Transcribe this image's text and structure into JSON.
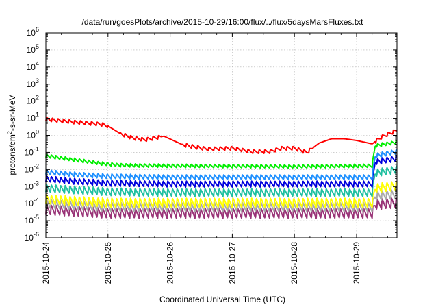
{
  "chart_data": {
    "type": "line",
    "title": "/data/run/goesPlots/archive/2015-10-29/16:00/flux/../flux/5daysMarsFluxes.txt",
    "xlabel": "Coordinated Universal Time (UTC)",
    "ylabel": {
      "prefix": "protons/cm",
      "sup": "2",
      "suffix": "-s-sr-MeV"
    },
    "yscale": "log",
    "ylim_exp": [
      -6,
      6
    ],
    "yticks": [
      {
        "base": "10",
        "exp": "-6"
      },
      {
        "base": "10",
        "exp": "-5"
      },
      {
        "base": "10",
        "exp": "-4"
      },
      {
        "base": "10",
        "exp": "-3"
      },
      {
        "base": "10",
        "exp": "-2"
      },
      {
        "base": "10",
        "exp": "-1"
      },
      {
        "base": "10",
        "exp": "0"
      },
      {
        "base": "10",
        "exp": "1"
      },
      {
        "base": "10",
        "exp": "2"
      },
      {
        "base": "10",
        "exp": "3"
      },
      {
        "base": "10",
        "exp": "4"
      },
      {
        "base": "10",
        "exp": "5"
      },
      {
        "base": "10",
        "exp": "6"
      }
    ],
    "xticks": [
      "2015-10-24",
      "2015-10-25",
      "2015-10-26",
      "2015-10-27",
      "2015-10-28",
      "2015-10-29"
    ],
    "xlim_days": [
      0,
      5.65
    ],
    "grid": true,
    "series": [
      {
        "color": "#ff0000",
        "teeth_amp": 0.22,
        "teeth_period": 0.09,
        "teeth_start": 0.0,
        "teeth_end": 1.0,
        "teeth2_start": 1.2,
        "teeth2_end": 1.85,
        "teeth3_start": 2.2,
        "teeth3_end": 4.3,
        "teeth4_start": 5.3,
        "teeth4_end": 5.65,
        "base_points": [
          [
            0,
            0.95
          ],
          [
            0.4,
            0.8
          ],
          [
            0.9,
            0.65
          ],
          [
            1.0,
            0.55
          ],
          [
            1.2,
            0.1
          ],
          [
            1.4,
            -0.15
          ],
          [
            1.6,
            -0.25
          ],
          [
            1.9,
            -0.05
          ],
          [
            2.2,
            -0.55
          ],
          [
            2.6,
            -0.8
          ],
          [
            3.0,
            -0.75
          ],
          [
            3.3,
            -0.95
          ],
          [
            3.6,
            -0.95
          ],
          [
            3.8,
            -0.75
          ],
          [
            4.0,
            -0.75
          ],
          [
            4.2,
            -1.0
          ],
          [
            4.4,
            -0.45
          ],
          [
            4.6,
            -0.2
          ],
          [
            4.8,
            -0.2
          ],
          [
            5.0,
            -0.3
          ],
          [
            5.25,
            -0.5
          ],
          [
            5.4,
            -0.1
          ],
          [
            5.65,
            0.3
          ]
        ]
      },
      {
        "color": "#00ee00",
        "teeth_amp": 0.2,
        "teeth_period": 0.075,
        "teeth_start": 0.0,
        "teeth_end": 5.65,
        "base_points": [
          [
            0,
            -1.2
          ],
          [
            0.3,
            -1.35
          ],
          [
            0.6,
            -1.5
          ],
          [
            0.9,
            -1.65
          ],
          [
            1.2,
            -1.75
          ],
          [
            2.0,
            -1.78
          ],
          [
            3.0,
            -1.8
          ],
          [
            4.0,
            -1.82
          ],
          [
            5.25,
            -1.78
          ],
          [
            5.3,
            -0.6
          ],
          [
            5.65,
            -0.4
          ]
        ]
      },
      {
        "color": "#1e90ff",
        "teeth_amp": 0.28,
        "teeth_period": 0.075,
        "teeth_start": 0.0,
        "teeth_end": 5.65,
        "base_points": [
          [
            0,
            -2.15
          ],
          [
            0.5,
            -2.3
          ],
          [
            1.0,
            -2.4
          ],
          [
            2.0,
            -2.45
          ],
          [
            3.0,
            -2.45
          ],
          [
            4.0,
            -2.45
          ],
          [
            5.25,
            -2.45
          ],
          [
            5.3,
            -1.2
          ],
          [
            5.65,
            -0.95
          ]
        ]
      },
      {
        "color": "#0000dd",
        "teeth_amp": 0.35,
        "teeth_period": 0.075,
        "teeth_start": 0.0,
        "teeth_end": 5.65,
        "base_points": [
          [
            0,
            -2.55
          ],
          [
            0.5,
            -2.7
          ],
          [
            1.0,
            -2.8
          ],
          [
            2.0,
            -2.85
          ],
          [
            3.0,
            -2.85
          ],
          [
            4.0,
            -2.85
          ],
          [
            5.25,
            -2.85
          ],
          [
            5.3,
            -1.55
          ],
          [
            5.65,
            -1.35
          ]
        ]
      },
      {
        "color": "#20c0a0",
        "teeth_amp": 0.45,
        "teeth_period": 0.075,
        "teeth_start": 0.0,
        "teeth_end": 5.65,
        "base_points": [
          [
            0,
            -3.1
          ],
          [
            0.5,
            -3.2
          ],
          [
            1.0,
            -3.3
          ],
          [
            2.0,
            -3.35
          ],
          [
            3.0,
            -3.35
          ],
          [
            4.0,
            -3.35
          ],
          [
            5.25,
            -3.35
          ],
          [
            5.3,
            -2.2
          ],
          [
            5.65,
            -2.0
          ]
        ]
      },
      {
        "color": "#ffff00",
        "teeth_amp": 0.55,
        "teeth_period": 0.075,
        "teeth_start": 0.0,
        "teeth_end": 5.65,
        "base_points": [
          [
            0,
            -3.75
          ],
          [
            0.5,
            -3.85
          ],
          [
            1.0,
            -3.95
          ],
          [
            2.0,
            -3.95
          ],
          [
            3.0,
            -3.95
          ],
          [
            4.0,
            -3.95
          ],
          [
            5.25,
            -3.95
          ],
          [
            5.3,
            -3.1
          ],
          [
            5.65,
            -2.95
          ]
        ]
      },
      {
        "color": "#aaaaaa",
        "teeth_amp": 0.55,
        "teeth_period": 0.075,
        "teeth_start": 0.0,
        "teeth_end": 5.65,
        "base_points": [
          [
            0,
            -4.0
          ],
          [
            0.5,
            -4.1
          ],
          [
            1.0,
            -4.2
          ],
          [
            2.0,
            -4.2
          ],
          [
            3.0,
            -4.2
          ],
          [
            4.0,
            -4.2
          ],
          [
            5.25,
            -4.2
          ],
          [
            5.3,
            -3.55
          ],
          [
            5.65,
            -3.45
          ]
        ]
      },
      {
        "color": "#993377",
        "teeth_amp": 0.6,
        "teeth_period": 0.075,
        "teeth_start": 0.0,
        "teeth_end": 5.65,
        "base_points": [
          [
            0,
            -4.35
          ],
          [
            0.5,
            -4.45
          ],
          [
            1.0,
            -4.55
          ],
          [
            2.0,
            -4.55
          ],
          [
            3.0,
            -4.55
          ],
          [
            4.0,
            -4.55
          ],
          [
            5.25,
            -4.55
          ],
          [
            5.3,
            -4.05
          ],
          [
            5.65,
            -3.95
          ]
        ]
      }
    ]
  }
}
